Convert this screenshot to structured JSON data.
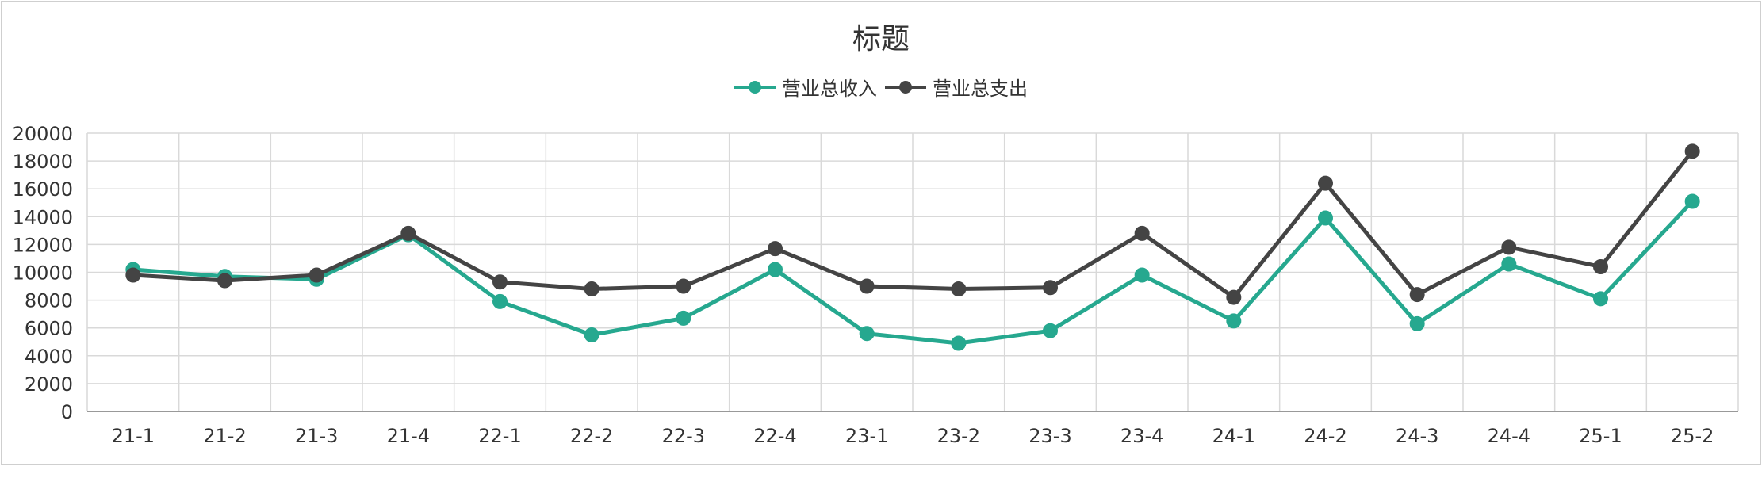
{
  "chart_data": {
    "type": "line",
    "title": "标题",
    "categories": [
      "21-1",
      "21-2",
      "21-3",
      "21-4",
      "22-1",
      "22-2",
      "22-3",
      "22-4",
      "23-1",
      "23-2",
      "23-3",
      "23-4",
      "24-1",
      "24-2",
      "24-3",
      "24-4",
      "25-1",
      "25-2"
    ],
    "series": [
      {
        "name": "营业总收入",
        "color": "#26a88f",
        "values": [
          10200,
          9700,
          9500,
          12700,
          7900,
          5500,
          6700,
          10200,
          5600,
          4900,
          5800,
          9800,
          6500,
          13900,
          6300,
          10600,
          8100,
          15100
        ]
      },
      {
        "name": "营业总支出",
        "color": "#444444",
        "values": [
          9800,
          9400,
          9800,
          12800,
          9300,
          8800,
          9000,
          11700,
          9000,
          8800,
          8900,
          12800,
          8200,
          16400,
          8400,
          11800,
          10400,
          18700
        ]
      }
    ],
    "ylim": [
      0,
      20000
    ],
    "yticks": [
      0,
      2000,
      4000,
      6000,
      8000,
      10000,
      12000,
      14000,
      16000,
      18000,
      20000
    ],
    "grid": true,
    "legend_position": "top-center"
  }
}
